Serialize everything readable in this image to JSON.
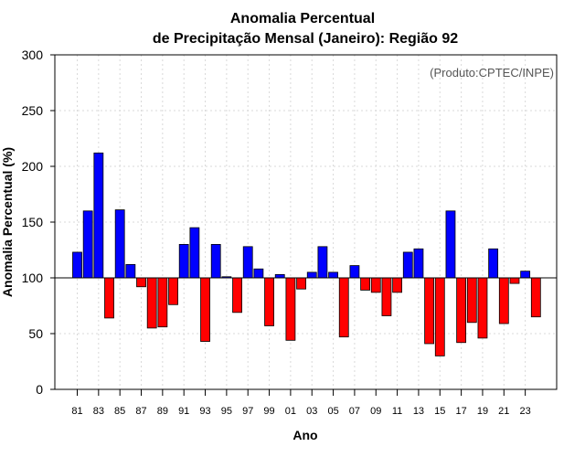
{
  "chart_data": {
    "type": "bar",
    "title": "Anomalia Percentual",
    "subtitle": "de Precipitação Mensal (Janeiro): Região 92",
    "xlabel": "Ano",
    "ylabel": "Anomalia Percentual (%)",
    "source_label": "(Produto:CPTEC/INPE)",
    "ylim": [
      0,
      300
    ],
    "yticks": [
      0,
      50,
      100,
      150,
      200,
      250,
      300
    ],
    "baseline": 100,
    "grid": true,
    "categories": [
      "81",
      "82",
      "83",
      "84",
      "85",
      "86",
      "87",
      "88",
      "89",
      "90",
      "91",
      "92",
      "93",
      "94",
      "95",
      "96",
      "97",
      "98",
      "99",
      "00",
      "01",
      "02",
      "03",
      "04",
      "05",
      "06",
      "07",
      "08",
      "09",
      "10",
      "11",
      "12",
      "13",
      "14",
      "15",
      "16",
      "17",
      "18",
      "19",
      "20",
      "21",
      "22",
      "23",
      "24"
    ],
    "xtick_labels": [
      "81",
      "83",
      "85",
      "87",
      "89",
      "91",
      "93",
      "95",
      "97",
      "99",
      "01",
      "03",
      "05",
      "07",
      "09",
      "11",
      "13",
      "15",
      "17",
      "19",
      "21",
      "23"
    ],
    "values": [
      123,
      160,
      212,
      64,
      161,
      112,
      92,
      55,
      56,
      76,
      130,
      145,
      43,
      130,
      101,
      69,
      128,
      108,
      57,
      103,
      44,
      90,
      105,
      128,
      105,
      47,
      111,
      89,
      87,
      66,
      87,
      123,
      126,
      41,
      30,
      160,
      42,
      60,
      46,
      126,
      59,
      95,
      106,
      65
    ],
    "colors": {
      "above": "#0000ff",
      "below": "#ff0000",
      "outline": "#000000",
      "grid": "#d9d9d9"
    }
  }
}
